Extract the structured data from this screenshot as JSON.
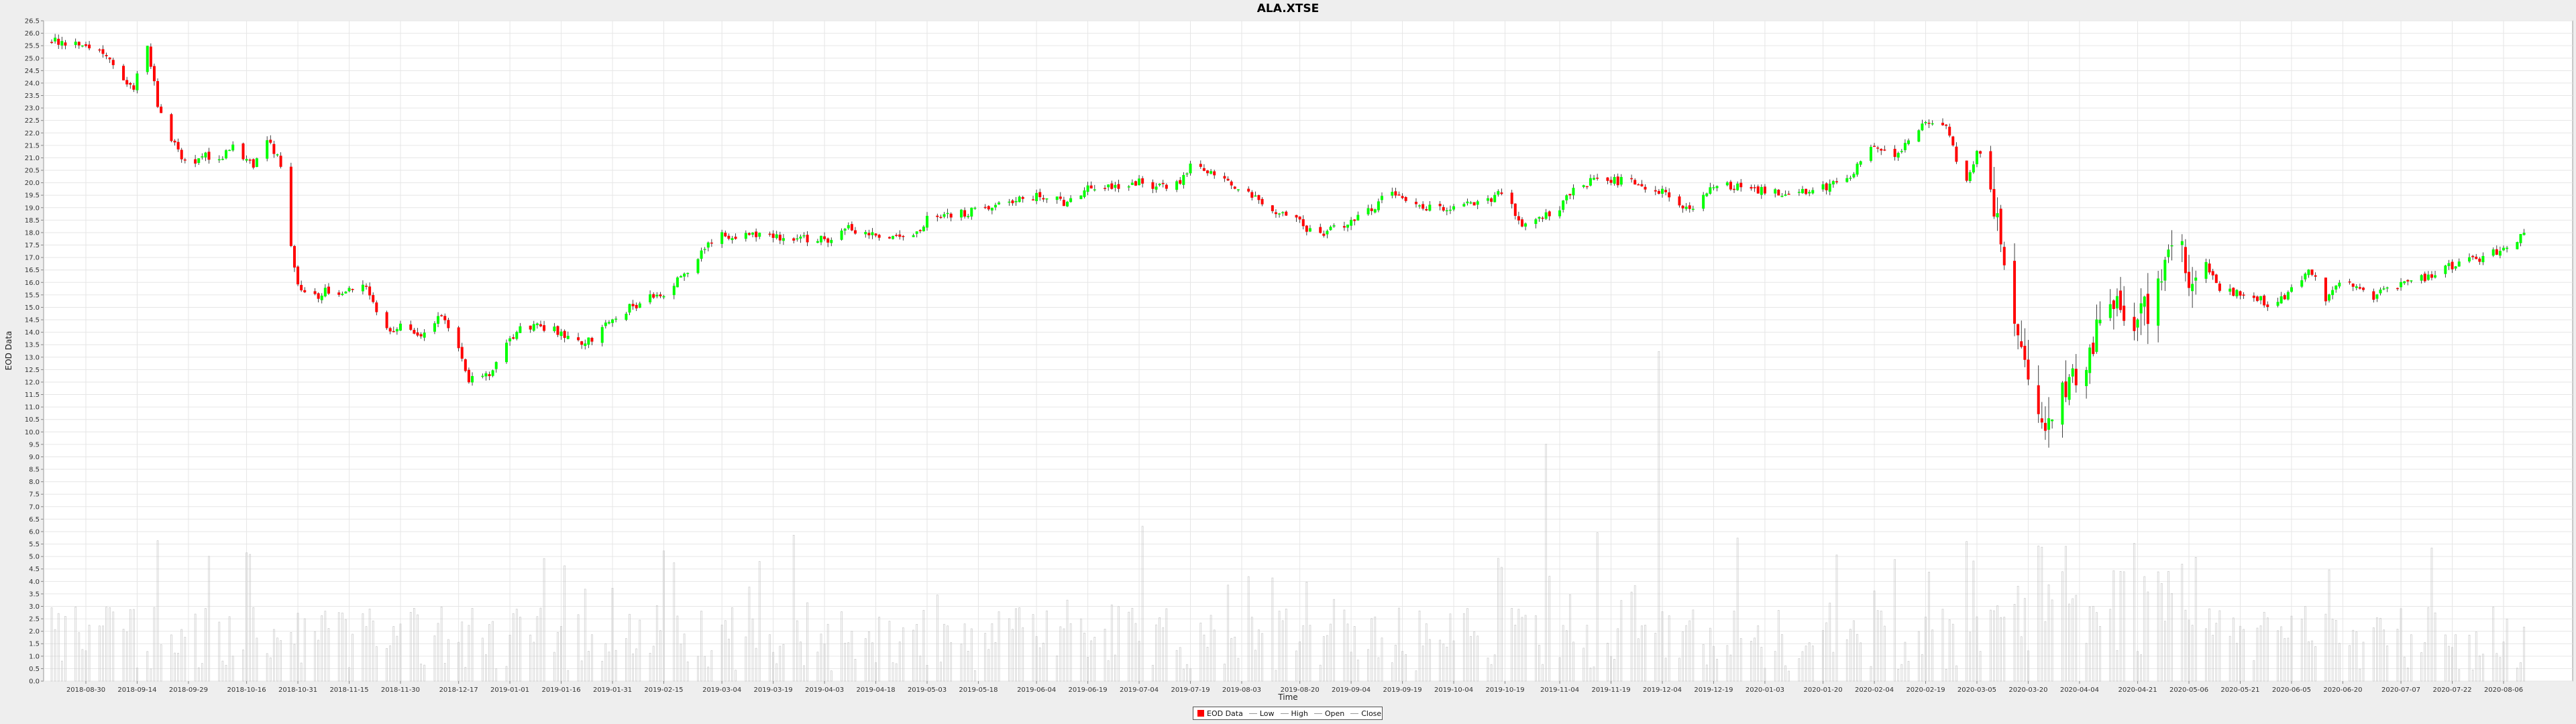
{
  "chart_data": {
    "type": "candlestick",
    "title": "ALA.XTSE",
    "xlabel": "Time",
    "ylabel": "EOD Data",
    "ylim": [
      0,
      26.5
    ],
    "grid": true,
    "legend_position": "bottom-center",
    "y_ticks": [
      0,
      0.5,
      1,
      1.5,
      2,
      2.5,
      3,
      3.5,
      4,
      4.5,
      5,
      5.5,
      6,
      6.5,
      7,
      7.5,
      8,
      8.5,
      9,
      9.5,
      10,
      10.5,
      11,
      11.5,
      12,
      12.5,
      13,
      13.5,
      14,
      14.5,
      15,
      15.5,
      16,
      16.5,
      17,
      17.5,
      18,
      18.5,
      19,
      19.5,
      20,
      20.5,
      21,
      21.5,
      22,
      22.5,
      23,
      23.5,
      24,
      24.5,
      25,
      25.5,
      26,
      26.5
    ],
    "y_tick_labels": [
      "0.0",
      "0.5",
      "1.0",
      "1.5",
      "2.0",
      "2.5",
      "3.0",
      "3.5",
      "4.0",
      "4.5",
      "5.0",
      "5.5",
      "6.0",
      "6.5",
      "7.0",
      "7.5",
      "8.0",
      "8.5",
      "9.0",
      "9.5",
      "10.0",
      "10.5",
      "11.0",
      "11.5",
      "12.0",
      "12.5",
      "13.0",
      "13.5",
      "14.0",
      "14.5",
      "15.0",
      "15.5",
      "16.0",
      "16.5",
      "17.0",
      "17.5",
      "18.0",
      "18.5",
      "19.0",
      "19.5",
      "20.0",
      "20.5",
      "21.0",
      "21.5",
      "22.0",
      "22.5",
      "23.0",
      "23.5",
      "24.0",
      "24.5",
      "25.0",
      "25.5",
      "26.0",
      "26.5"
    ],
    "x_ticks": [
      "2018-08-30",
      "2018-09-14",
      "2018-09-29",
      "2018-10-16",
      "2018-10-31",
      "2018-11-15",
      "2018-11-30",
      "2018-12-17",
      "2019-01-01",
      "2019-01-16",
      "2019-01-31",
      "2019-02-15",
      "2019-03-04",
      "2019-03-19",
      "2019-04-03",
      "2019-04-18",
      "2019-05-03",
      "2019-05-18",
      "2019-06-04",
      "2019-06-19",
      "2019-07-04",
      "2019-07-19",
      "2019-08-03",
      "2019-08-20",
      "2019-09-04",
      "2019-09-19",
      "2019-10-04",
      "2019-10-19",
      "2019-11-04",
      "2019-11-19",
      "2019-12-04",
      "2019-12-19",
      "2020-01-03",
      "2020-01-20",
      "2020-02-04",
      "2020-02-19",
      "2020-03-05",
      "2020-03-20",
      "2020-04-04",
      "2020-04-21",
      "2020-05-06",
      "2020-05-21",
      "2020-06-05",
      "2020-06-20",
      "2020-07-07",
      "2020-07-22",
      "2020-08-06"
    ],
    "close_path": [
      [
        "2018-08-20",
        25.7
      ],
      [
        "2018-08-30",
        25.6
      ],
      [
        "2018-09-05",
        25.2
      ],
      [
        "2018-09-10",
        24.1
      ],
      [
        "2018-09-13",
        23.9
      ],
      [
        "2018-09-17",
        25.4
      ],
      [
        "2018-09-20",
        23.2
      ],
      [
        "2018-09-24",
        21.8
      ],
      [
        "2018-09-29",
        20.6
      ],
      [
        "2018-10-03",
        21.1
      ],
      [
        "2018-10-08",
        20.9
      ],
      [
        "2018-10-12",
        21.5
      ],
      [
        "2018-10-18",
        20.7
      ],
      [
        "2018-10-22",
        21.8
      ],
      [
        "2018-10-26",
        20.8
      ],
      [
        "2018-10-29",
        17.5
      ],
      [
        "2018-10-31",
        15.9
      ],
      [
        "2018-11-03",
        15.2
      ],
      [
        "2018-11-07",
        15.6
      ],
      [
        "2018-11-15",
        15.7
      ],
      [
        "2018-11-20",
        15.8
      ],
      [
        "2018-11-25",
        14.0
      ],
      [
        "2018-11-30",
        14.2
      ],
      [
        "2018-12-06",
        13.7
      ],
      [
        "2018-12-12",
        14.7
      ],
      [
        "2018-12-17",
        13.4
      ],
      [
        "2018-12-20",
        12.1
      ],
      [
        "2018-12-26",
        12.3
      ],
      [
        "2019-01-01",
        13.8
      ],
      [
        "2019-01-06",
        14.3
      ],
      [
        "2019-01-16",
        14.0
      ],
      [
        "2019-01-23",
        13.5
      ],
      [
        "2019-01-31",
        14.5
      ],
      [
        "2019-02-05",
        15.0
      ],
      [
        "2019-02-15",
        15.6
      ],
      [
        "2019-02-22",
        16.4
      ],
      [
        "2019-03-01",
        17.7
      ],
      [
        "2019-03-04",
        17.9
      ],
      [
        "2019-03-19",
        17.8
      ],
      [
        "2019-04-03",
        17.7
      ],
      [
        "2019-04-10",
        18.2
      ],
      [
        "2019-04-18",
        17.9
      ],
      [
        "2019-04-28",
        17.7
      ],
      [
        "2019-05-03",
        18.5
      ],
      [
        "2019-05-18",
        18.9
      ],
      [
        "2019-06-04",
        19.5
      ],
      [
        "2019-06-12",
        19.2
      ],
      [
        "2019-06-19",
        19.8
      ],
      [
        "2019-07-04",
        20.0
      ],
      [
        "2019-07-14",
        19.7
      ],
      [
        "2019-07-19",
        20.7
      ],
      [
        "2019-07-24",
        20.5
      ],
      [
        "2019-07-29",
        20.0
      ],
      [
        "2019-08-03",
        19.8
      ],
      [
        "2019-08-12",
        18.8
      ],
      [
        "2019-08-20",
        18.4
      ],
      [
        "2019-08-25",
        17.8
      ],
      [
        "2019-09-04",
        18.5
      ],
      [
        "2019-09-10",
        18.9
      ],
      [
        "2019-09-15",
        19.7
      ],
      [
        "2019-09-19",
        19.5
      ],
      [
        "2019-09-25",
        18.9
      ],
      [
        "2019-10-04",
        19.1
      ],
      [
        "2019-10-14",
        19.3
      ],
      [
        "2019-10-19",
        19.7
      ],
      [
        "2019-10-24",
        18.2
      ],
      [
        "2019-11-04",
        19.0
      ],
      [
        "2019-11-10",
        20.0
      ],
      [
        "2019-11-19",
        20.1
      ],
      [
        "2019-11-26",
        20.0
      ],
      [
        "2019-12-04",
        19.6
      ],
      [
        "2019-12-12",
        18.9
      ],
      [
        "2019-12-19",
        19.9
      ],
      [
        "2020-01-03",
        19.7
      ],
      [
        "2020-01-08",
        19.6
      ],
      [
        "2020-01-14",
        19.6
      ],
      [
        "2020-01-20",
        19.8
      ],
      [
        "2020-01-28",
        20.3
      ],
      [
        "2020-02-04",
        21.6
      ],
      [
        "2020-02-10",
        21.1
      ],
      [
        "2020-02-19",
        22.5
      ],
      [
        "2020-02-25",
        22.4
      ],
      [
        "2020-03-01",
        19.9
      ],
      [
        "2020-03-05",
        21.2
      ],
      [
        "2020-03-08",
        20.9
      ],
      [
        "2020-03-12",
        17.5
      ],
      [
        "2020-03-16",
        14.1
      ],
      [
        "2020-03-20",
        12.5
      ],
      [
        "2020-03-23",
        10.2
      ],
      [
        "2020-03-26",
        10.0
      ],
      [
        "2020-03-30",
        11.8
      ],
      [
        "2020-04-04",
        12.6
      ],
      [
        "2020-04-09",
        14.0
      ],
      [
        "2020-04-15",
        15.1
      ],
      [
        "2020-04-21",
        14.4
      ],
      [
        "2020-04-27",
        15.6
      ],
      [
        "2020-05-01",
        17.8
      ],
      [
        "2020-05-06",
        16.4
      ],
      [
        "2020-05-11",
        16.7
      ],
      [
        "2020-05-16",
        15.6
      ],
      [
        "2020-05-21",
        15.6
      ],
      [
        "2020-05-26",
        15.4
      ],
      [
        "2020-05-31",
        15.0
      ],
      [
        "2020-06-05",
        15.7
      ],
      [
        "2020-06-10",
        16.5
      ],
      [
        "2020-06-15",
        15.4
      ],
      [
        "2020-06-20",
        16.0
      ],
      [
        "2020-06-28",
        15.4
      ],
      [
        "2020-07-07",
        15.9
      ],
      [
        "2020-07-14",
        16.2
      ],
      [
        "2020-07-22",
        16.7
      ],
      [
        "2020-07-29",
        16.9
      ],
      [
        "2020-08-06",
        17.3
      ],
      [
        "2020-08-12",
        17.9
      ]
    ],
    "volume_max": 13.3
  },
  "legend": {
    "eod_data": "EOD Data",
    "low": "Low",
    "high": "High",
    "open": "Open",
    "close": "Close"
  },
  "colors": {
    "up": "#00ff00",
    "down": "#ff0000",
    "wick": "#111111",
    "volume": "#c8c8c8",
    "grid": "#e6e6e6",
    "plot_bg": "#ffffff",
    "page_bg": "#eeeeee"
  }
}
